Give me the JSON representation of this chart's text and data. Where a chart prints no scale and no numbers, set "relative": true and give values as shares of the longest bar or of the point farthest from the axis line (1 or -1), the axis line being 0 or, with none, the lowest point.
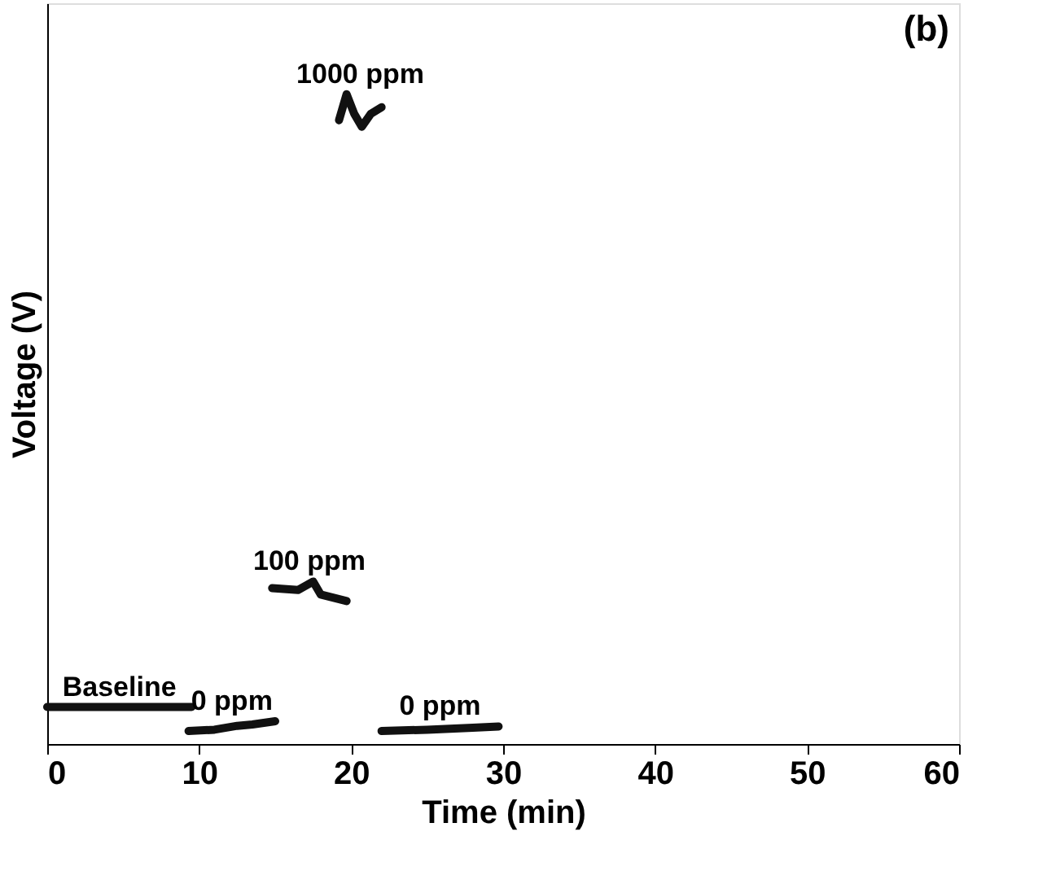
{
  "chart_data": {
    "type": "line",
    "relative": true,
    "xlabel": "Time (min)",
    "ylabel": "Voltage (V)",
    "xlim": [
      0,
      60
    ],
    "xticks": [
      0,
      10,
      20,
      30,
      40,
      50,
      60
    ],
    "grid": false,
    "marker": "none",
    "line_style": "solid",
    "series": [
      {
        "name": "Baseline",
        "color": "#111111",
        "x": [
          0,
          9.5
        ],
        "values": [
          0.057,
          0.057
        ]
      },
      {
        "name": "0 ppm",
        "color": "#111111",
        "x": [
          9.3,
          11,
          12.5,
          13.5,
          15
        ],
        "values": [
          0.02,
          0.022,
          0.028,
          0.03,
          0.035
        ]
      },
      {
        "name": "100 ppm",
        "color": "#111111",
        "x": [
          14.8,
          16.5,
          17.5,
          18,
          19.7
        ],
        "values": [
          0.24,
          0.237,
          0.25,
          0.23,
          0.22
        ]
      },
      {
        "name": "1000 ppm",
        "color": "#111111",
        "x": [
          19.2,
          19.7,
          20.2,
          20.7,
          21.3,
          22.0
        ],
        "values": [
          0.96,
          1.0,
          0.97,
          0.95,
          0.97,
          0.98
        ]
      },
      {
        "name": "0 ppm",
        "color": "#111111",
        "x": [
          22,
          25,
          28,
          29.7
        ],
        "values": [
          0.02,
          0.022,
          0.025,
          0.027
        ]
      }
    ],
    "annotations": [
      "(b)"
    ]
  }
}
